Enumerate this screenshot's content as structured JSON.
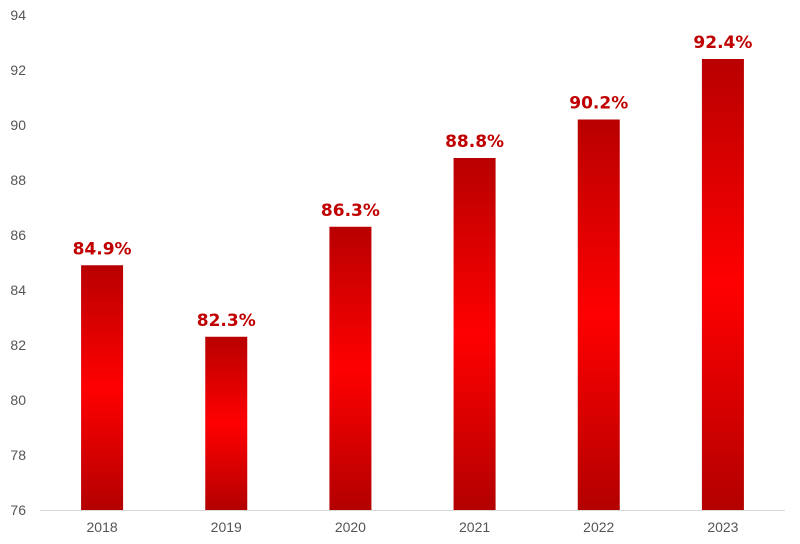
{
  "colors": {
    "bar_dark": "#b30000",
    "bar_light": "#ff0000",
    "label": "#c00000",
    "axis": "#d9d9d9",
    "tick_text": "#555555"
  },
  "chart_data": {
    "type": "bar",
    "categories": [
      "2018",
      "2019",
      "2020",
      "2021",
      "2022",
      "2023"
    ],
    "values": [
      84.9,
      82.3,
      86.3,
      88.8,
      90.2,
      92.4
    ],
    "data_labels": [
      "84.9%",
      "82.3%",
      "86.3%",
      "88.8%",
      "90.2%",
      "92.4%"
    ],
    "ylim": [
      76,
      94
    ],
    "yticks": [
      76,
      78,
      80,
      82,
      84,
      86,
      88,
      90,
      92,
      94
    ],
    "title": "",
    "xlabel": "",
    "ylabel": "",
    "grid": false,
    "legend": "none"
  }
}
